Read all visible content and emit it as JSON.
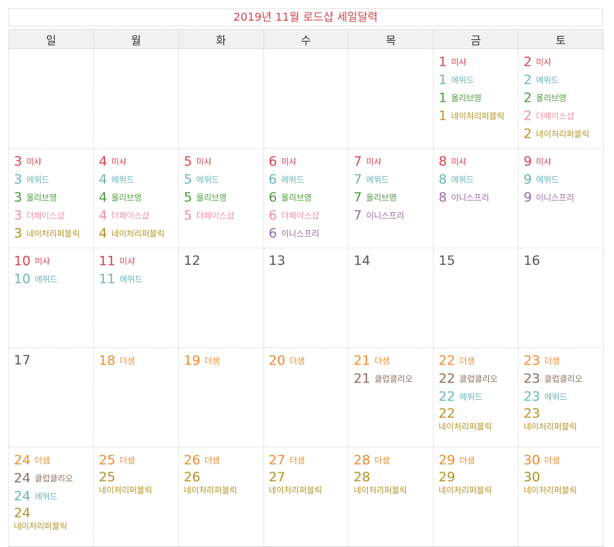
{
  "title": "2019년 11월 로드샵 세일달력",
  "weekdays": [
    "일",
    "월",
    "화",
    "수",
    "목",
    "금",
    "토"
  ],
  "colors": {
    "misha": "#d9434e",
    "etude": "#6bb4b4",
    "oliveyoung": "#4a9a3a",
    "thefaceshop": "#f28ea0",
    "natrep": "#b39224",
    "innisfree": "#9a6aa8",
    "thesaem": "#ef8a2e",
    "clubclio": "#8b6b5a",
    "plain": "#555555"
  },
  "weeks": [
    [
      {
        "day": null,
        "entries": []
      },
      {
        "day": null,
        "entries": []
      },
      {
        "day": null,
        "entries": []
      },
      {
        "day": null,
        "entries": []
      },
      {
        "day": null,
        "entries": []
      },
      {
        "day": "1",
        "entries": [
          {
            "num": "1",
            "label": "미샤",
            "brand": "misha"
          },
          {
            "num": "1",
            "label": "에뛰드",
            "brand": "etude"
          },
          {
            "num": "1",
            "label": "올리브영",
            "brand": "oliveyoung"
          },
          {
            "num": "1",
            "label": "네이처리퍼블릭",
            "brand": "natrep"
          }
        ]
      },
      {
        "day": "2",
        "entries": [
          {
            "num": "2",
            "label": "미샤",
            "brand": "misha"
          },
          {
            "num": "2",
            "label": "에뛰드",
            "brand": "etude"
          },
          {
            "num": "2",
            "label": "올리브영",
            "brand": "oliveyoung"
          },
          {
            "num": "2",
            "label": "더페이스샵",
            "brand": "thefaceshop"
          },
          {
            "num": "2",
            "label": "네이처리퍼블릭",
            "brand": "natrep"
          }
        ]
      }
    ],
    [
      {
        "day": "3",
        "entries": [
          {
            "num": "3",
            "label": "미샤",
            "brand": "misha"
          },
          {
            "num": "3",
            "label": "에뛰드",
            "brand": "etude"
          },
          {
            "num": "3",
            "label": "올리브영",
            "brand": "oliveyoung"
          },
          {
            "num": "3",
            "label": "더페이스샵",
            "brand": "thefaceshop"
          },
          {
            "num": "3",
            "label": "네이처리퍼블릭",
            "brand": "natrep"
          }
        ]
      },
      {
        "day": "4",
        "entries": [
          {
            "num": "4",
            "label": "미샤",
            "brand": "misha"
          },
          {
            "num": "4",
            "label": "에뛰드",
            "brand": "etude"
          },
          {
            "num": "4",
            "label": "올리브영",
            "brand": "oliveyoung"
          },
          {
            "num": "4",
            "label": "더페이스샵",
            "brand": "thefaceshop"
          },
          {
            "num": "4",
            "label": "네이처리퍼블릭",
            "brand": "natrep"
          }
        ]
      },
      {
        "day": "5",
        "entries": [
          {
            "num": "5",
            "label": "미샤",
            "brand": "misha"
          },
          {
            "num": "5",
            "label": "에뛰드",
            "brand": "etude"
          },
          {
            "num": "5",
            "label": "올리브영",
            "brand": "oliveyoung"
          },
          {
            "num": "5",
            "label": "더페이스샵",
            "brand": "thefaceshop"
          }
        ]
      },
      {
        "day": "6",
        "entries": [
          {
            "num": "6",
            "label": "미샤",
            "brand": "misha"
          },
          {
            "num": "6",
            "label": "에뛰드",
            "brand": "etude"
          },
          {
            "num": "6",
            "label": "올리브영",
            "brand": "oliveyoung"
          },
          {
            "num": "6",
            "label": "더페이스샵",
            "brand": "thefaceshop"
          },
          {
            "num": "6",
            "label": "이니스프리",
            "brand": "innisfree"
          }
        ]
      },
      {
        "day": "7",
        "entries": [
          {
            "num": "7",
            "label": "미샤",
            "brand": "misha"
          },
          {
            "num": "7",
            "label": "에뛰드",
            "brand": "etude"
          },
          {
            "num": "7",
            "label": "올리브영",
            "brand": "oliveyoung"
          },
          {
            "num": "7",
            "label": "이니스프리",
            "brand": "innisfree"
          }
        ]
      },
      {
        "day": "8",
        "entries": [
          {
            "num": "8",
            "label": "미샤",
            "brand": "misha"
          },
          {
            "num": "8",
            "label": "에뛰드",
            "brand": "etude"
          },
          {
            "num": "8",
            "label": "이니스프리",
            "brand": "innisfree"
          }
        ]
      },
      {
        "day": "9",
        "entries": [
          {
            "num": "9",
            "label": "미샤",
            "brand": "misha"
          },
          {
            "num": "9",
            "label": "에뛰드",
            "brand": "etude"
          },
          {
            "num": "9",
            "label": "이니스프리",
            "brand": "innisfree"
          }
        ]
      }
    ],
    [
      {
        "day": "10",
        "entries": [
          {
            "num": "10",
            "label": "미샤",
            "brand": "misha"
          },
          {
            "num": "10",
            "label": "에뛰드",
            "brand": "etude"
          }
        ]
      },
      {
        "day": "11",
        "entries": [
          {
            "num": "11",
            "label": "미샤",
            "brand": "misha"
          },
          {
            "num": "11",
            "label": "에뛰드",
            "brand": "etude"
          }
        ]
      },
      {
        "day": "12",
        "entries": []
      },
      {
        "day": "13",
        "entries": []
      },
      {
        "day": "14",
        "entries": []
      },
      {
        "day": "15",
        "entries": []
      },
      {
        "day": "16",
        "entries": []
      }
    ],
    [
      {
        "day": "17",
        "entries": []
      },
      {
        "day": "18",
        "entries": [
          {
            "num": "18",
            "label": "더샘",
            "brand": "thesaem"
          }
        ]
      },
      {
        "day": "19",
        "entries": [
          {
            "num": "19",
            "label": "더샘",
            "brand": "thesaem"
          }
        ]
      },
      {
        "day": "20",
        "entries": [
          {
            "num": "20",
            "label": "더샘",
            "brand": "thesaem"
          }
        ]
      },
      {
        "day": "21",
        "entries": [
          {
            "num": "21",
            "label": "더샘",
            "brand": "thesaem"
          },
          {
            "num": "21",
            "label": "클럽클리오",
            "brand": "clubclio"
          }
        ]
      },
      {
        "day": "22",
        "entries": [
          {
            "num": "22",
            "label": "더샘",
            "brand": "thesaem"
          },
          {
            "num": "22",
            "label": "클럽클리오",
            "brand": "clubclio"
          },
          {
            "num": "22",
            "label": "에뛰드",
            "brand": "etude"
          },
          {
            "num": "22",
            "label": "네이처리퍼블릭",
            "brand": "natrep",
            "wrap": true
          }
        ]
      },
      {
        "day": "23",
        "entries": [
          {
            "num": "23",
            "label": "더샘",
            "brand": "thesaem"
          },
          {
            "num": "23",
            "label": "클럽클리오",
            "brand": "clubclio"
          },
          {
            "num": "23",
            "label": "에뛰드",
            "brand": "etude"
          },
          {
            "num": "23",
            "label": "네이처리퍼블릭",
            "brand": "natrep",
            "wrap": true
          }
        ]
      }
    ],
    [
      {
        "day": "24",
        "entries": [
          {
            "num": "24",
            "label": "더샘",
            "brand": "thesaem"
          },
          {
            "num": "24",
            "label": "클럽클리오",
            "brand": "clubclio"
          },
          {
            "num": "24",
            "label": "에뛰드",
            "brand": "etude"
          },
          {
            "num": "24",
            "label": "네이처리퍼블릭",
            "brand": "natrep",
            "wrap": true
          }
        ]
      },
      {
        "day": "25",
        "entries": [
          {
            "num": "25",
            "label": "더샘",
            "brand": "thesaem"
          },
          {
            "num": "25",
            "label": "네이처리퍼블릭",
            "brand": "natrep",
            "wrap": true
          }
        ]
      },
      {
        "day": "26",
        "entries": [
          {
            "num": "26",
            "label": "더샘",
            "brand": "thesaem"
          },
          {
            "num": "26",
            "label": "네이처리퍼블릭",
            "brand": "natrep",
            "wrap": true
          }
        ]
      },
      {
        "day": "27",
        "entries": [
          {
            "num": "27",
            "label": "더샘",
            "brand": "thesaem"
          },
          {
            "num": "27",
            "label": "네이처리퍼블릭",
            "brand": "natrep",
            "wrap": true
          }
        ]
      },
      {
        "day": "28",
        "entries": [
          {
            "num": "28",
            "label": "더샘",
            "brand": "thesaem"
          },
          {
            "num": "28",
            "label": "네이처리퍼블릭",
            "brand": "natrep",
            "wrap": true
          }
        ]
      },
      {
        "day": "29",
        "entries": [
          {
            "num": "29",
            "label": "더샘",
            "brand": "thesaem"
          },
          {
            "num": "29",
            "label": "네이처리퍼블릭",
            "brand": "natrep",
            "wrap": true
          }
        ]
      },
      {
        "day": "30",
        "entries": [
          {
            "num": "30",
            "label": "더샘",
            "brand": "thesaem"
          },
          {
            "num": "30",
            "label": "네이처리퍼블릭",
            "brand": "natrep",
            "wrap": true
          }
        ]
      }
    ]
  ]
}
